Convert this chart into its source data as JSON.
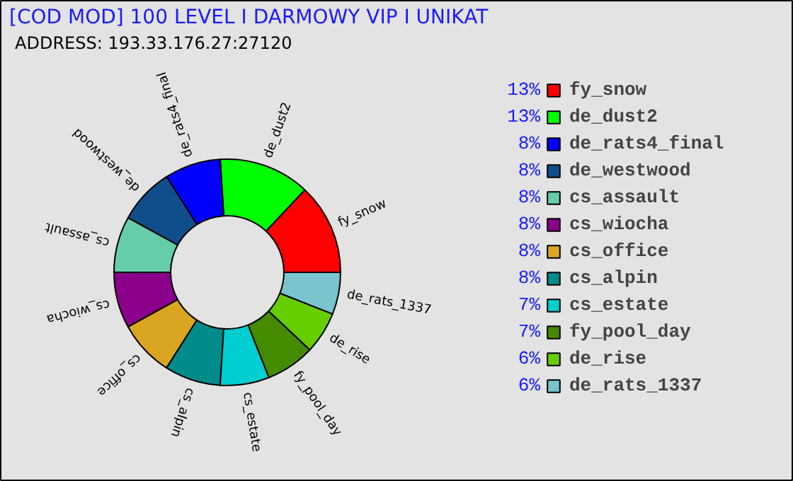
{
  "chart_data": {
    "type": "donut",
    "title": "[COD MOD] 100 LEVEL I DARMOWY  VIP I UNIKAT",
    "annotations": [
      "ADDRESS: 193.33.176.27:27120"
    ],
    "categories": [
      "fy_snow",
      "de_dust2",
      "de_rats4_final",
      "de_westwood",
      "cs_assault",
      "cs_wiocha",
      "cs_office",
      "cs_alpin",
      "cs_estate",
      "fy_pool_day",
      "de_rise",
      "de_rats_1337"
    ],
    "values": [
      13,
      13,
      8,
      8,
      8,
      8,
      8,
      8,
      7,
      7,
      6,
      6
    ],
    "colors": [
      "#ff0000",
      "#00ff00",
      "#0000ff",
      "#104e8b",
      "#66cdaa",
      "#8b008b",
      "#daa520",
      "#008b8b",
      "#00ced1",
      "#458b00",
      "#66cd00",
      "#7ac5cd"
    ],
    "value_labels": [
      "13%",
      "13%",
      "8%",
      "8%",
      "8%",
      "8%",
      "8%",
      "8%",
      "7%",
      "7%",
      "6%",
      "6%"
    ],
    "legend": "right"
  }
}
